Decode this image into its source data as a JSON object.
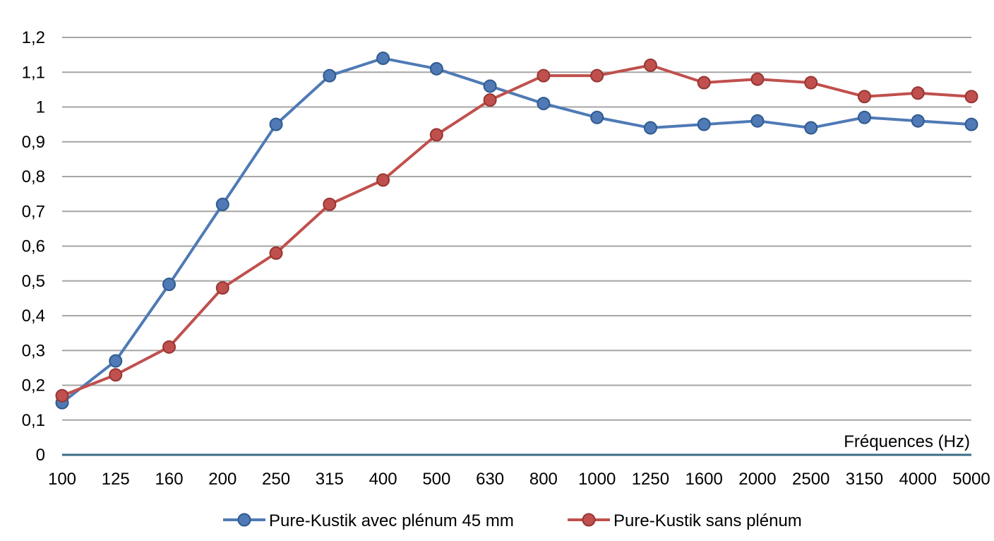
{
  "chart_data": {
    "type": "line",
    "title": "",
    "xlabel": "Fréquences (Hz)",
    "ylabel": "",
    "categories": [
      "100",
      "125",
      "160",
      "200",
      "250",
      "315",
      "400",
      "500",
      "630",
      "800",
      "1000",
      "1250",
      "1600",
      "2000",
      "2500",
      "3150",
      "4000",
      "5000"
    ],
    "ylim": [
      0,
      1.2
    ],
    "yticks": [
      "0",
      "0,1",
      "0,2",
      "0,3",
      "0,4",
      "0,5",
      "0,6",
      "0,7",
      "0,8",
      "0,9",
      "1",
      "1,1",
      "1,2"
    ],
    "grid": "horizontal",
    "legend_position": "bottom",
    "series": [
      {
        "name": "Pure-Kustik avec plénum 45 mm",
        "color": "#4F7AB5",
        "values": [
          0.15,
          0.27,
          0.49,
          0.72,
          0.95,
          1.09,
          1.14,
          1.11,
          1.06,
          1.01,
          0.97,
          0.94,
          0.95,
          0.96,
          0.94,
          0.97,
          0.96,
          0.95
        ]
      },
      {
        "name": "Pure-Kustik sans plénum",
        "color": "#C0504D",
        "values": [
          0.17,
          0.23,
          0.31,
          0.48,
          0.58,
          0.72,
          0.79,
          0.92,
          1.02,
          1.09,
          1.09,
          1.12,
          1.07,
          1.08,
          1.07,
          1.03,
          1.04,
          1.03
        ]
      }
    ]
  }
}
